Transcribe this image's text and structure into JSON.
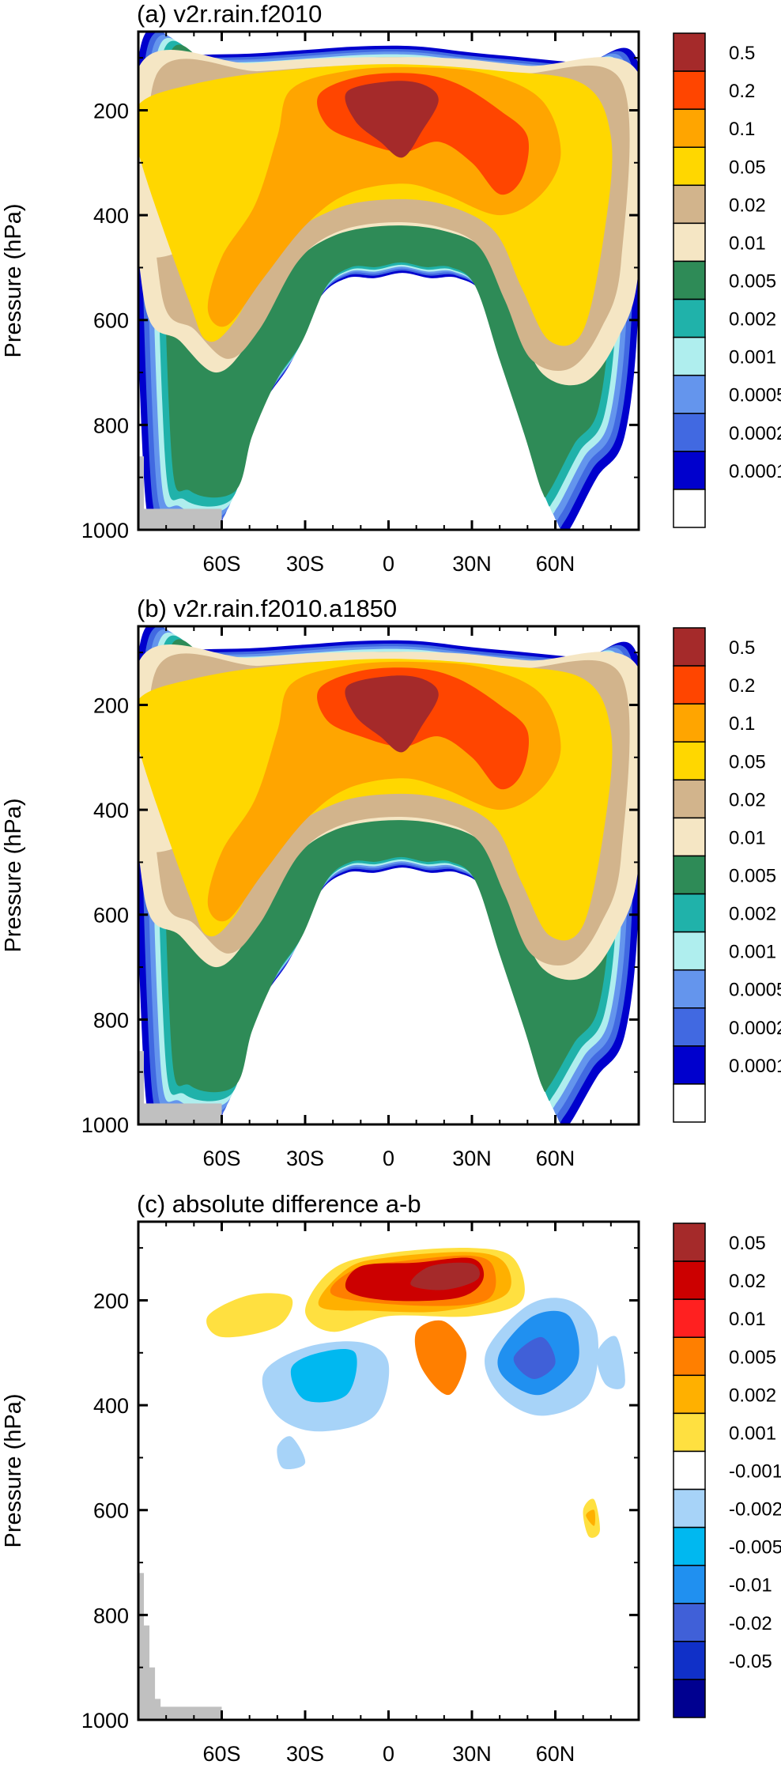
{
  "chart_data": [
    {
      "type": "heatmap",
      "title": "(a) v2r.rain.f2010",
      "ylabel": "Pressure (hPa)",
      "xlim": [
        -90,
        90
      ],
      "ylim": [
        1000,
        50
      ],
      "y_ticks": [
        200,
        400,
        600,
        800,
        1000
      ],
      "x_ticks": [
        {
          "value": -60,
          "label": "60S"
        },
        {
          "value": -30,
          "label": "30S"
        },
        {
          "value": 0,
          "label": "0"
        },
        {
          "value": 30,
          "label": "30N"
        },
        {
          "value": 60,
          "label": "60N"
        }
      ],
      "colorbar": {
        "levels": [
          "0.5",
          "0.2",
          "0.1",
          "0.05",
          "0.02",
          "0.01",
          "0.005",
          "0.002",
          "0.001",
          "0.0005",
          "0.0002",
          "0.0001"
        ],
        "colors": [
          "#a52a2a",
          "#ff4500",
          "#ffa500",
          "#ffd700",
          "#d2b48c",
          "#f5e6c4",
          "#2e8b57",
          "#20b2aa",
          "#afeeee",
          "#6495ed",
          "#4169e1",
          "#0000cd",
          "#ffffff"
        ]
      },
      "regions": [
        {
          "level_index": 12,
          "label": "< 0.0001",
          "bounds": "outside filled area"
        },
        {
          "level_index": 0,
          "label": "> 0.5",
          "lat_range": [
            -15,
            15
          ],
          "p_range": [
            130,
            300
          ]
        }
      ],
      "missing_region": {
        "lat_range": [
          -90,
          -60
        ],
        "p_range": [
          960,
          1000
        ],
        "color": "#c0c0c0"
      }
    },
    {
      "type": "heatmap",
      "title": "(b) v2r.rain.f2010.a1850",
      "ylabel": "Pressure (hPa)",
      "xlim": [
        -90,
        90
      ],
      "ylim": [
        1000,
        50
      ],
      "y_ticks": [
        200,
        400,
        600,
        800,
        1000
      ],
      "x_ticks": [
        {
          "value": -60,
          "label": "60S"
        },
        {
          "value": -30,
          "label": "30S"
        },
        {
          "value": 0,
          "label": "0"
        },
        {
          "value": 30,
          "label": "30N"
        },
        {
          "value": 60,
          "label": "60N"
        }
      ],
      "colorbar": {
        "levels": [
          "0.5",
          "0.2",
          "0.1",
          "0.05",
          "0.02",
          "0.01",
          "0.005",
          "0.002",
          "0.001",
          "0.0005",
          "0.0002",
          "0.0001"
        ],
        "colors": [
          "#a52a2a",
          "#ff4500",
          "#ffa500",
          "#ffd700",
          "#d2b48c",
          "#f5e6c4",
          "#2e8b57",
          "#20b2aa",
          "#afeeee",
          "#6495ed",
          "#4169e1",
          "#0000cd",
          "#ffffff"
        ]
      },
      "missing_region": {
        "lat_range": [
          -90,
          -60
        ],
        "p_range": [
          960,
          1000
        ],
        "color": "#c0c0c0"
      }
    },
    {
      "type": "heatmap",
      "title": "(c) absolute difference a-b",
      "ylabel": "Pressure (hPa)",
      "xlim": [
        -90,
        90
      ],
      "ylim": [
        1000,
        50
      ],
      "y_ticks": [
        200,
        400,
        600,
        800,
        1000
      ],
      "x_ticks": [
        {
          "value": -60,
          "label": "60S"
        },
        {
          "value": -30,
          "label": "30S"
        },
        {
          "value": 0,
          "label": "0"
        },
        {
          "value": 30,
          "label": "30N"
        },
        {
          "value": 60,
          "label": "60N"
        }
      ],
      "colorbar": {
        "levels": [
          "0.05",
          "0.02",
          "0.01",
          "0.005",
          "0.002",
          "0.001",
          "-0.001",
          "-0.002",
          "-0.005",
          "-0.01",
          "-0.02",
          "-0.05"
        ],
        "colors": [
          "#a52a2a",
          "#cc0000",
          "#ff2020",
          "#ff7f00",
          "#ffb000",
          "#ffe040",
          "#ffffff",
          "#a7d3f8",
          "#00b8f0",
          "#2090f0",
          "#4060d8",
          "#1030c8",
          "#000090"
        ]
      },
      "missing_region": {
        "lat_range": [
          -90,
          -60
        ],
        "p_range": [
          960,
          1000
        ],
        "color": "#c0c0c0"
      }
    }
  ],
  "colors": {
    "missing": "#c0c0c0",
    "frame": "#000000",
    "background": "#ffffff"
  }
}
